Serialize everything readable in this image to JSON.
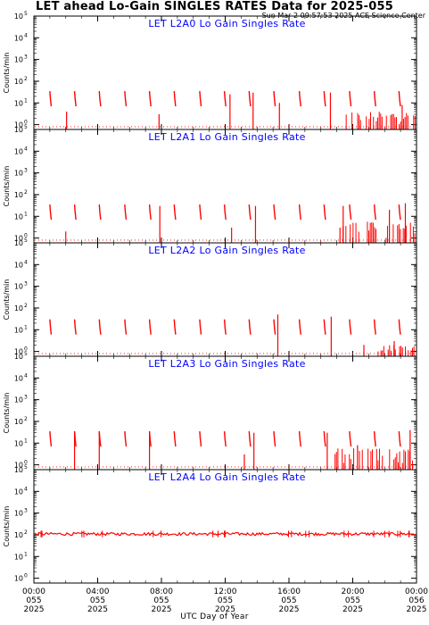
{
  "header": {
    "title": "LET ahead Lo-Gain SINGLES RATES Data for 2025-055",
    "timestamp": "Sun Mar  2 09:57:53 2025 ACE Science Center"
  },
  "x_axis_label": "UTC Day of Year",
  "colors": {
    "data": "#ff0000",
    "panel_title": "#0000ff",
    "axes": "#000000"
  },
  "chart_data": [
    {
      "type": "line",
      "title": "LET L2A0 Lo Gain Singles Rate",
      "ylabel": "Counts/min",
      "yscale": "log",
      "ylim": [
        0.6,
        100000
      ],
      "xlim": [
        0,
        24
      ],
      "spikes": [
        {
          "x": 1.0,
          "y": 35
        },
        {
          "x": 2.55,
          "y": 35
        },
        {
          "x": 4.1,
          "y": 35
        },
        {
          "x": 5.7,
          "y": 35
        },
        {
          "x": 7.25,
          "y": 35
        },
        {
          "x": 8.8,
          "y": 35
        },
        {
          "x": 10.4,
          "y": 35
        },
        {
          "x": 11.95,
          "y": 35
        },
        {
          "x": 13.5,
          "y": 35
        },
        {
          "x": 15.05,
          "y": 35
        },
        {
          "x": 16.65,
          "y": 35
        },
        {
          "x": 18.2,
          "y": 35
        },
        {
          "x": 19.8,
          "y": 35
        },
        {
          "x": 21.35,
          "y": 35
        },
        {
          "x": 22.9,
          "y": 35
        }
      ],
      "tall": [
        {
          "x": 2.05,
          "y": 4
        },
        {
          "x": 7.85,
          "y": 3
        },
        {
          "x": 12.3,
          "y": 25
        },
        {
          "x": 13.75,
          "y": 30
        },
        {
          "x": 15.4,
          "y": 10
        },
        {
          "x": 18.6,
          "y": 30
        },
        {
          "x": 23.1,
          "y": 8
        }
      ],
      "noisy_from": 19.5,
      "noise_max": 4,
      "baseline": 0.8
    },
    {
      "type": "line",
      "title": "LET L2A1 Lo Gain Singles Rate",
      "ylabel": "Counts/min",
      "yscale": "log",
      "ylim": [
        0.6,
        100000
      ],
      "xlim": [
        0,
        24
      ],
      "spikes": [
        {
          "x": 1.0,
          "y": 35
        },
        {
          "x": 2.55,
          "y": 35
        },
        {
          "x": 4.1,
          "y": 35
        },
        {
          "x": 5.7,
          "y": 35
        },
        {
          "x": 7.25,
          "y": 35
        },
        {
          "x": 8.8,
          "y": 35
        },
        {
          "x": 10.4,
          "y": 35
        },
        {
          "x": 11.95,
          "y": 35
        },
        {
          "x": 13.5,
          "y": 35
        },
        {
          "x": 15.05,
          "y": 35
        },
        {
          "x": 16.65,
          "y": 35
        },
        {
          "x": 18.2,
          "y": 35
        },
        {
          "x": 19.8,
          "y": 35
        },
        {
          "x": 21.35,
          "y": 35
        },
        {
          "x": 22.9,
          "y": 35
        }
      ],
      "tall": [
        {
          "x": 2.0,
          "y": 2
        },
        {
          "x": 7.9,
          "y": 30
        },
        {
          "x": 12.4,
          "y": 3
        },
        {
          "x": 13.9,
          "y": 30
        },
        {
          "x": 19.2,
          "y": 3
        },
        {
          "x": 19.4,
          "y": 30
        },
        {
          "x": 22.3,
          "y": 20
        },
        {
          "x": 23.3,
          "y": 40
        }
      ],
      "noisy_from": 19.3,
      "noise_max": 6,
      "baseline": 0.8
    },
    {
      "type": "line",
      "title": "LET L2A2 Lo Gain Singles Rate",
      "ylabel": "Counts/min",
      "yscale": "log",
      "ylim": [
        0.6,
        100000
      ],
      "xlim": [
        0,
        24
      ],
      "spikes": [
        {
          "x": 1.0,
          "y": 30
        },
        {
          "x": 2.55,
          "y": 30
        },
        {
          "x": 4.1,
          "y": 30
        },
        {
          "x": 5.7,
          "y": 30
        },
        {
          "x": 7.25,
          "y": 30
        },
        {
          "x": 8.8,
          "y": 30
        },
        {
          "x": 10.4,
          "y": 30
        },
        {
          "x": 11.95,
          "y": 30
        },
        {
          "x": 13.5,
          "y": 30
        },
        {
          "x": 15.05,
          "y": 30
        },
        {
          "x": 16.65,
          "y": 30
        },
        {
          "x": 18.2,
          "y": 30
        },
        {
          "x": 19.8,
          "y": 30
        },
        {
          "x": 21.35,
          "y": 30
        },
        {
          "x": 22.9,
          "y": 30
        }
      ],
      "tall": [
        {
          "x": 15.3,
          "y": 50
        },
        {
          "x": 18.65,
          "y": 40
        },
        {
          "x": 20.7,
          "y": 2
        },
        {
          "x": 22.6,
          "y": 3
        }
      ],
      "noisy_from": 21.5,
      "noise_max": 2,
      "baseline": 0.8
    },
    {
      "type": "line",
      "title": "LET L2A3 Lo Gain Singles Rate",
      "ylabel": "Counts/min",
      "yscale": "log",
      "ylim": [
        0.6,
        100000
      ],
      "xlim": [
        0,
        24
      ],
      "spikes": [
        {
          "x": 1.0,
          "y": 35
        },
        {
          "x": 2.55,
          "y": 35
        },
        {
          "x": 4.1,
          "y": 35
        },
        {
          "x": 5.7,
          "y": 35
        },
        {
          "x": 7.25,
          "y": 35
        },
        {
          "x": 8.8,
          "y": 35
        },
        {
          "x": 10.4,
          "y": 35
        },
        {
          "x": 11.95,
          "y": 35
        },
        {
          "x": 13.5,
          "y": 35
        },
        {
          "x": 15.05,
          "y": 35
        },
        {
          "x": 16.65,
          "y": 35
        },
        {
          "x": 18.2,
          "y": 35
        },
        {
          "x": 19.8,
          "y": 35
        },
        {
          "x": 21.35,
          "y": 35
        },
        {
          "x": 22.9,
          "y": 35
        }
      ],
      "tall": [
        {
          "x": 2.55,
          "y": 35
        },
        {
          "x": 4.1,
          "y": 35
        },
        {
          "x": 7.25,
          "y": 35
        },
        {
          "x": 13.2,
          "y": 3
        },
        {
          "x": 13.8,
          "y": 30
        },
        {
          "x": 18.4,
          "y": 30
        },
        {
          "x": 20.3,
          "y": 8
        },
        {
          "x": 23.6,
          "y": 40
        }
      ],
      "noisy_from": 18.8,
      "noise_max": 6,
      "baseline": 0.8
    },
    {
      "type": "line",
      "title": "LET L2A4 Lo Gain Singles Rate",
      "ylabel": "Counts/min",
      "yscale": "log",
      "ylim": [
        0.6,
        100000
      ],
      "xlim": [
        0,
        24
      ],
      "flat_level": 110,
      "spikes": [],
      "tall": [],
      "noisy_from": null,
      "noise_max": 0,
      "baseline": null
    }
  ],
  "x_ticks": [
    {
      "hour": 0,
      "time": "00:00",
      "doy": "055",
      "year": "2025"
    },
    {
      "hour": 4,
      "time": "04:00",
      "doy": "055",
      "year": "2025"
    },
    {
      "hour": 8,
      "time": "08:00",
      "doy": "055",
      "year": "2025"
    },
    {
      "hour": 12,
      "time": "12:00",
      "doy": "055",
      "year": "2025"
    },
    {
      "hour": 16,
      "time": "16:00",
      "doy": "055",
      "year": "2025"
    },
    {
      "hour": 20,
      "time": "20:00",
      "doy": "055",
      "year": "2025"
    },
    {
      "hour": 24,
      "time": "00:00",
      "doy": "056",
      "year": "2025"
    }
  ],
  "y_ticks": [
    {
      "exp": 0,
      "label": "10",
      "sup": "0"
    },
    {
      "exp": 1,
      "label": "10",
      "sup": "1"
    },
    {
      "exp": 2,
      "label": "10",
      "sup": "2"
    },
    {
      "exp": 3,
      "label": "10",
      "sup": "3"
    },
    {
      "exp": 4,
      "label": "10",
      "sup": "4"
    },
    {
      "exp": 5,
      "label": "10",
      "sup": "5"
    }
  ]
}
